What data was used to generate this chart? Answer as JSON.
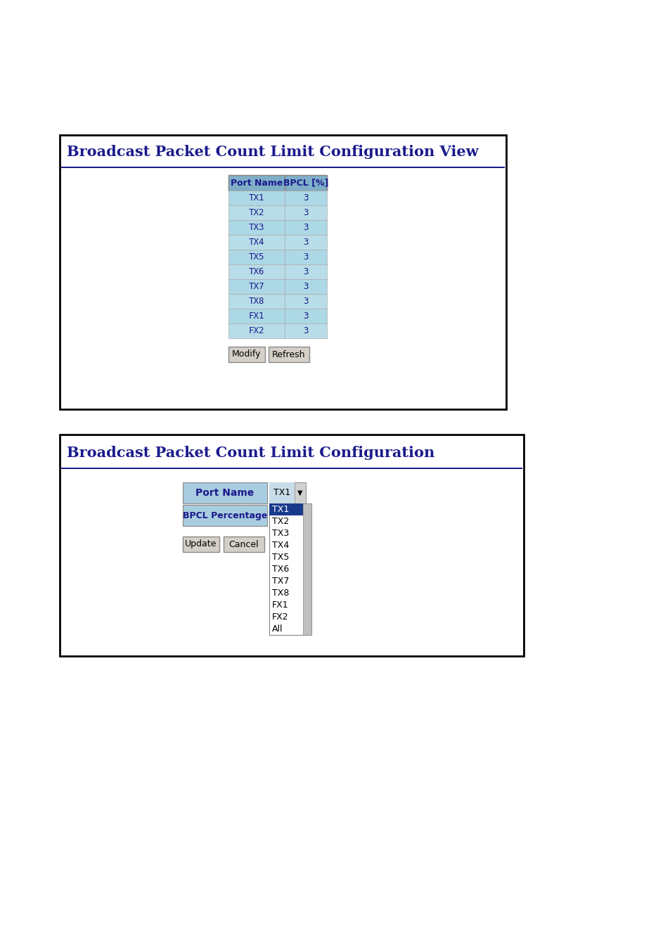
{
  "page_bg": "#ffffff",
  "panel1": {
    "title": "Broadcast Packet Count Limit Configuration View",
    "title_color": "#1a1a8c",
    "box_border_color": "#1a1a8c",
    "box_bg": "#ffffff",
    "table_header": [
      "Port Name",
      "BPCL [%]"
    ],
    "table_header_bg": "#7fafc8",
    "table_row_bg_even": "#add8e6",
    "table_row_bg_odd": "#b8dde8",
    "table_text_color": "#1a1a8c",
    "button1": "Modify",
    "button2": "Refresh",
    "button_bg": "#d4d0c8",
    "button_text_color": "#000000",
    "table_rows": [
      [
        "TX1",
        "3"
      ],
      [
        "TX2",
        "3"
      ],
      [
        "TX3",
        "3"
      ],
      [
        "TX4",
        "3"
      ],
      [
        "TX5",
        "3"
      ],
      [
        "TX6",
        "3"
      ],
      [
        "TX7",
        "3"
      ],
      [
        "TX8",
        "3"
      ],
      [
        "FX1",
        "3"
      ],
      [
        "FX2",
        "3"
      ]
    ]
  },
  "panel2": {
    "title": "Broadcast Packet Count Limit Configuration",
    "title_color": "#1a1a8c",
    "box_border_color": "#1a1a8c",
    "box_bg": "#ffffff",
    "form_label_bg": "#a8cce0",
    "form_label_color": "#1a1a8c",
    "form_labels": [
      "Port Name",
      "BPCL Percentage"
    ],
    "dropdown_bg": "#e0e0e0",
    "dropdown_text": "TX1",
    "dropdown_border": "#888888",
    "dropdown_list_bg": "#ffffff",
    "dropdown_selected_bg": "#1a3a8c",
    "dropdown_selected_text": "#ffffff",
    "dropdown_items": [
      "TX1",
      "TX2",
      "TX3",
      "TX4",
      "TX5",
      "TX6",
      "TX7",
      "TX8",
      "FX1",
      "FX2",
      "All"
    ],
    "scrollbar_bg": "#c0c0c0",
    "button1": "Update",
    "button2": "Cancel",
    "button_bg": "#d4d0c8",
    "button_text_color": "#000000"
  }
}
